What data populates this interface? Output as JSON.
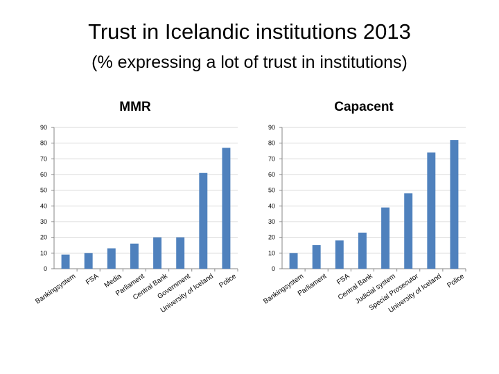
{
  "page": {
    "title": "Trust in Icelandic institutions 2013",
    "subtitle": "(% expressing a lot of trust in institutions)"
  },
  "colors": {
    "bar": "#4f81bd",
    "axis": "#868686",
    "grid": "#d9d9d9"
  },
  "chart_data": [
    {
      "type": "bar",
      "title": "MMR",
      "xlabel": "",
      "ylabel": "",
      "ylim": [
        0,
        90
      ],
      "yticks": [
        0,
        10,
        20,
        30,
        40,
        50,
        60,
        70,
        80,
        90
      ],
      "grid": true,
      "categories": [
        "Bankingsystem",
        "FSA",
        "Media",
        "Parliament",
        "Central Bank",
        "Government",
        "University of Iceland",
        "Police"
      ],
      "values": [
        9,
        10,
        13,
        16,
        20,
        20,
        61,
        77
      ]
    },
    {
      "type": "bar",
      "title": "Capacent",
      "xlabel": "",
      "ylabel": "",
      "ylim": [
        0,
        90
      ],
      "yticks": [
        0,
        10,
        20,
        30,
        40,
        50,
        60,
        70,
        80,
        90
      ],
      "grid": true,
      "categories": [
        "Bankingsystem",
        "Parliament",
        "FSA",
        "Central Bank",
        "Judicial system",
        "Special Prosecutor",
        "University of Iceland",
        "Police"
      ],
      "values": [
        10,
        15,
        18,
        23,
        39,
        48,
        74,
        82
      ]
    }
  ]
}
